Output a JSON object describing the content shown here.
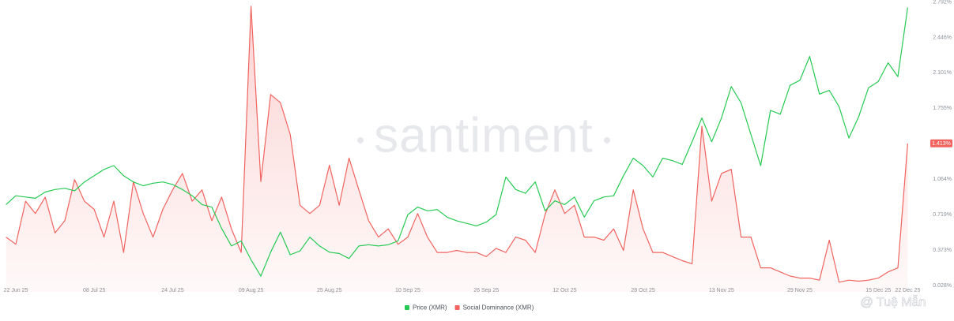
{
  "chart_data": {
    "type": "line",
    "watermark": "santiment",
    "credit": "@ Tuệ Mẫn",
    "categories": [
      null,
      "22 Jun 25",
      null,
      null,
      null,
      null,
      null,
      null,
      null,
      "08 Jul 25",
      null,
      null,
      null,
      null,
      null,
      null,
      null,
      "24 Jul 25",
      null,
      null,
      null,
      null,
      null,
      null,
      null,
      "09 Aug 25",
      null,
      null,
      null,
      null,
      null,
      null,
      null,
      "25 Aug 25",
      null,
      null,
      null,
      null,
      null,
      null,
      null,
      "10 Sep 25",
      null,
      null,
      null,
      null,
      null,
      null,
      null,
      "26 Sep 25",
      null,
      null,
      null,
      null,
      null,
      null,
      null,
      "12 Oct 25",
      null,
      null,
      null,
      null,
      null,
      null,
      null,
      "28 Oct 25",
      null,
      null,
      null,
      null,
      null,
      null,
      null,
      "13 Nov 25",
      null,
      null,
      null,
      null,
      null,
      null,
      null,
      "29 Nov 25",
      null,
      null,
      null,
      null,
      null,
      null,
      null,
      "15 Dec 25",
      null,
      null,
      "22 Dec 25"
    ],
    "ylim": [
      0.028,
      2.792
    ],
    "yticks": [
      {
        "value": 0.028,
        "label": "0.028%"
      },
      {
        "value": 0.373,
        "label": "0.373%"
      },
      {
        "value": 0.719,
        "label": "0.719%"
      },
      {
        "value": 1.064,
        "label": "1.064%"
      },
      {
        "value": 1.755,
        "label": "1.755%"
      },
      {
        "value": 2.101,
        "label": "2.101%"
      },
      {
        "value": 2.446,
        "label": "2.446%"
      },
      {
        "value": 2.792,
        "label": "2.792%"
      }
    ],
    "y2lim": [
      227.5,
      453.5
    ],
    "grid": false,
    "legend": "bottom",
    "series": [
      {
        "name": "Price (XMR)",
        "color": "#26c953",
        "axis": "y2",
        "values": [
          292,
          299,
          298,
          297,
          302,
          304,
          305,
          303,
          310,
          315,
          320,
          323,
          315,
          310,
          307,
          309,
          310,
          308,
          304,
          299,
          292,
          290,
          273,
          259,
          263,
          248,
          235,
          254,
          270,
          252,
          255,
          266,
          259,
          254,
          253,
          249,
          259,
          260,
          259,
          260,
          263,
          284,
          290,
          287,
          288,
          282,
          279,
          277,
          275,
          278,
          284,
          314,
          304,
          301,
          310,
          287,
          295,
          292,
          298,
          282,
          295,
          298,
          299,
          315,
          329,
          323,
          314,
          329,
          327,
          324,
          342,
          361,
          342,
          361,
          386,
          373,
          348,
          323,
          367,
          364,
          387,
          391,
          410,
          380,
          383,
          370,
          345,
          362,
          385,
          390,
          405,
          394,
          449
        ]
      },
      {
        "name": "Social Dominance (XMR)",
        "color": "#f0635f",
        "values": [
          0.5,
          0.43,
          0.85,
          0.73,
          0.89,
          0.54,
          0.66,
          1.06,
          0.85,
          0.77,
          0.5,
          0.85,
          0.35,
          1.04,
          0.73,
          0.5,
          0.77,
          0.96,
          1.12,
          0.85,
          0.96,
          0.66,
          0.89,
          0.58,
          0.35,
          2.75,
          1.04,
          1.89,
          1.81,
          1.5,
          0.81,
          0.73,
          0.81,
          1.2,
          0.81,
          1.27,
          0.96,
          0.66,
          0.5,
          0.58,
          0.43,
          0.5,
          0.73,
          0.5,
          0.35,
          0.35,
          0.37,
          0.35,
          0.35,
          0.31,
          0.39,
          0.35,
          0.5,
          0.47,
          0.35,
          0.72,
          0.96,
          0.73,
          0.81,
          0.5,
          0.5,
          0.47,
          0.58,
          0.37,
          0.96,
          0.58,
          0.35,
          0.35,
          0.31,
          0.27,
          0.24,
          1.58,
          0.85,
          1.12,
          1.16,
          0.5,
          0.5,
          0.2,
          0.2,
          0.16,
          0.12,
          0.1,
          0.1,
          0.08,
          0.47,
          0.06,
          0.08,
          0.07,
          0.08,
          0.1,
          0.16,
          0.2,
          1.413
        ],
        "value_labels": [
          null,
          null,
          null,
          null,
          null,
          null,
          null,
          null,
          null,
          null,
          null,
          null,
          null,
          null,
          null,
          null,
          null,
          null,
          null,
          null,
          null,
          null,
          null,
          null,
          null,
          null,
          null,
          null,
          null,
          null,
          null,
          null,
          null,
          null,
          null,
          null,
          null,
          null,
          null,
          null,
          null,
          null,
          null,
          null,
          null,
          null,
          null,
          null,
          null,
          null,
          null,
          null,
          null,
          null,
          null,
          null,
          null,
          null,
          null,
          null,
          null,
          null,
          null,
          null,
          null,
          null,
          null,
          null,
          null,
          null,
          null,
          null,
          null,
          null,
          null,
          null,
          null,
          null,
          null,
          null,
          null,
          null,
          null,
          null,
          null,
          null,
          null,
          null,
          null,
          null,
          null,
          null,
          "1.413%"
        ]
      }
    ]
  }
}
